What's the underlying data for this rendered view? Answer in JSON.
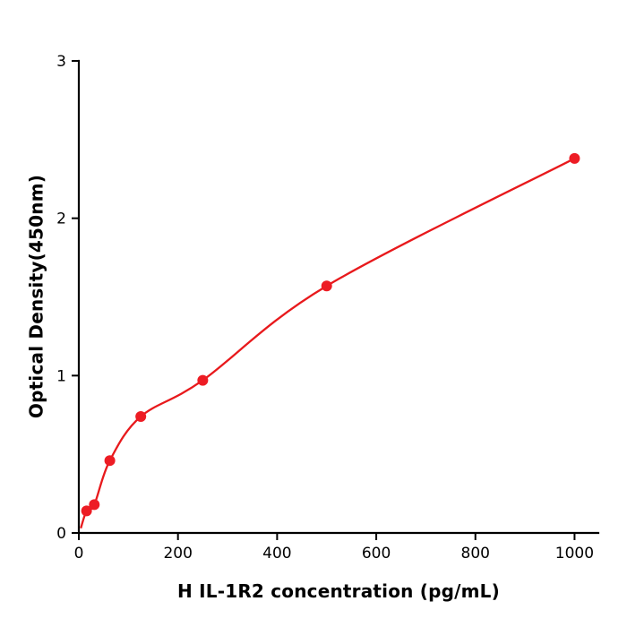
{
  "chart_data": {
    "type": "scatter",
    "title": "",
    "xlabel": "H  IL-1R2 concentration (pg/mL)",
    "ylabel": "Optical Density(450nm)",
    "x": [
      15.6,
      31.2,
      62.5,
      125,
      250,
      500,
      1000
    ],
    "y": [
      0.14,
      0.18,
      0.46,
      0.74,
      0.97,
      1.57,
      2.38
    ],
    "fit_curve": "smooth curve through points (4PL-style standard curve)",
    "curve_start": [
      4,
      0.03
    ],
    "xticks": [
      0,
      200,
      400,
      600,
      800,
      1000
    ],
    "yticks": [
      0,
      1,
      2,
      3
    ],
    "xlim": [
      0,
      1048
    ],
    "ylim": [
      0,
      3
    ],
    "grid": false,
    "legend": "none",
    "point_color": "#ed1c24",
    "line_color": "#e8191c",
    "axis_color": "#000000"
  }
}
